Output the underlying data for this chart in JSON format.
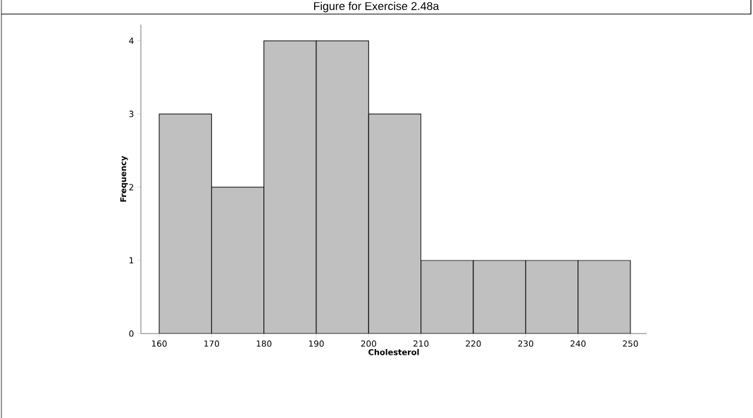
{
  "chart_data": {
    "type": "histogram",
    "title": "Figure for Exercise 2.48a",
    "xlabel": "Cholesterol",
    "ylabel": "Frequency",
    "bins": [
      160,
      170,
      180,
      190,
      200,
      210,
      220,
      230,
      240,
      250
    ],
    "values": [
      3,
      2,
      4,
      4,
      3,
      1,
      1,
      1,
      1
    ],
    "color": "#c0c0c0",
    "xlim": [
      156.5,
      253.1
    ],
    "ylim": [
      0,
      4.22
    ],
    "xticks": [
      160,
      170,
      180,
      190,
      200,
      210,
      220,
      230,
      240,
      250
    ],
    "yticks": [
      0,
      1,
      2,
      3,
      4
    ]
  }
}
